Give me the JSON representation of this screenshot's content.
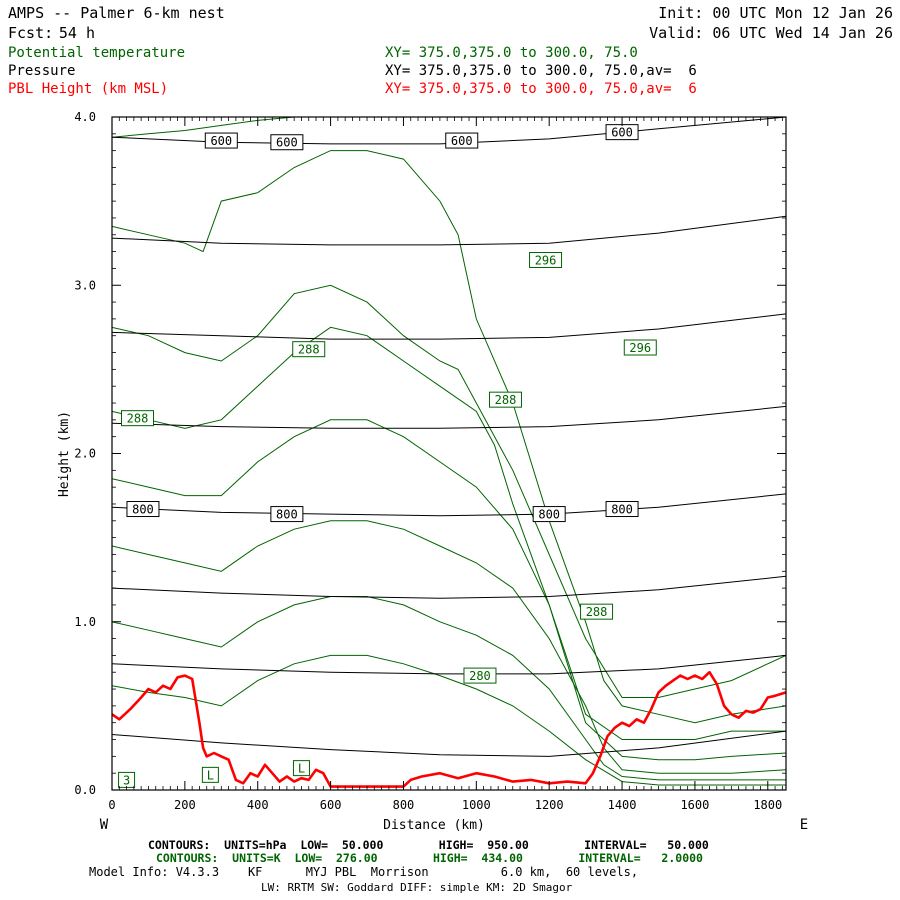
{
  "header": {
    "title_left": "AMPS -- Palmer 6-km nest",
    "fcst_label": "Fcst:",
    "fcst_value": "54 h",
    "init": "Init: 00 UTC Mon 12 Jan 26",
    "valid": "Valid: 06 UTC Wed 14 Jan 26",
    "field_theta": "Potential temperature",
    "field_pressure": "Pressure",
    "field_pbl": "PBL Height (km MSL)",
    "xy_theta": "XY= 375.0,375.0 to 300.0, 75.0",
    "xy_pressure": "XY= 375.0,375.0 to 300.0, 75.0,av=  6",
    "xy_pbl": "XY= 375.0,375.0 to 300.0, 75.0,av=  6"
  },
  "colors": {
    "theta": "#006400",
    "pressure": "#000000",
    "pbl": "#ff0000",
    "background": "#ffffff"
  },
  "footer": {
    "contours_hpa": "CONTOURS:  UNITS=hPa  LOW=  50.000        HIGH=  950.00        INTERVAL=   50.000",
    "contours_k": "CONTOURS:  UNITS=K  LOW=  276.00        HIGH=  434.00        INTERVAL=   2.0000",
    "model_info": "Model Info: V4.3.3    KF      MYJ PBL  Morrison          6.0 km,  60 levels,",
    "model_info2": "LW: RRTM SW: Goddard DIFF: simple KM: 2D Smagor"
  },
  "chart_data": {
    "type": "line",
    "title": "AMPS -- Palmer 6-km nest",
    "xlabel": "Distance (km)",
    "ylabel": "Height (km)",
    "xlim": [
      0,
      1850
    ],
    "ylim": [
      0,
      4.0
    ],
    "x_ticks": [
      0,
      200,
      400,
      600,
      800,
      1000,
      1200,
      1400,
      1600,
      1800
    ],
    "x_tick_labels": [
      "0",
      "200",
      "400",
      "600",
      "800",
      "1000",
      "1200",
      "1400",
      "1600",
      "1800"
    ],
    "y_ticks": [
      0,
      1,
      2,
      3,
      4
    ],
    "y_tick_labels": [
      "0.0",
      "1.0",
      "2.0",
      "3.0",
      "4.0"
    ],
    "x_end_labels": {
      "left": "W",
      "right": "E"
    },
    "pressure_contours": [
      {
        "x": [
          0,
          300,
          600,
          900,
          1200,
          1500,
          1850
        ],
        "y": [
          0.33,
          0.28,
          0.24,
          0.21,
          0.2,
          0.25,
          0.35
        ]
      },
      {
        "x": [
          0,
          300,
          600,
          900,
          1200,
          1500,
          1850
        ],
        "y": [
          0.75,
          0.72,
          0.7,
          0.69,
          0.69,
          0.72,
          0.8
        ]
      },
      {
        "x": [
          0,
          300,
          600,
          900,
          1200,
          1500,
          1850
        ],
        "y": [
          1.2,
          1.17,
          1.15,
          1.14,
          1.15,
          1.19,
          1.27
        ]
      },
      {
        "x": [
          0,
          300,
          600,
          900,
          1200,
          1500,
          1850
        ],
        "y": [
          1.68,
          1.65,
          1.64,
          1.63,
          1.64,
          1.68,
          1.76
        ]
      },
      {
        "x": [
          0,
          300,
          600,
          900,
          1200,
          1500,
          1850
        ],
        "y": [
          2.18,
          2.16,
          2.15,
          2.15,
          2.16,
          2.2,
          2.28
        ]
      },
      {
        "x": [
          0,
          300,
          600,
          900,
          1200,
          1500,
          1850
        ],
        "y": [
          2.72,
          2.7,
          2.68,
          2.68,
          2.69,
          2.74,
          2.83
        ]
      },
      {
        "x": [
          0,
          300,
          600,
          900,
          1200,
          1500,
          1850
        ],
        "y": [
          3.28,
          3.25,
          3.24,
          3.24,
          3.25,
          3.31,
          3.41
        ]
      },
      {
        "x": [
          0,
          300,
          600,
          900,
          1200,
          1500,
          1850
        ],
        "y": [
          3.88,
          3.85,
          3.84,
          3.84,
          3.87,
          3.93,
          4.02
        ]
      }
    ],
    "pressure_labels": [
      {
        "text": "600",
        "x": 300,
        "y": 3.86
      },
      {
        "text": "600",
        "x": 480,
        "y": 3.85
      },
      {
        "text": "600",
        "x": 960,
        "y": 3.86
      },
      {
        "text": "600",
        "x": 1400,
        "y": 3.91
      },
      {
        "text": "800",
        "x": 85,
        "y": 1.67
      },
      {
        "text": "800",
        "x": 480,
        "y": 1.64
      },
      {
        "text": "800",
        "x": 1200,
        "y": 1.64
      },
      {
        "text": "800",
        "x": 1400,
        "y": 1.67
      }
    ],
    "theta_contours": [
      {
        "x": [
          0,
          100,
          200,
          300,
          400,
          500,
          600,
          700,
          800,
          900,
          1000,
          1100,
          1200,
          1300,
          1350,
          1400,
          1500,
          1600,
          1700,
          1850
        ],
        "y": [
          3.88,
          3.9,
          3.92,
          3.95,
          3.98,
          4.0,
          4.0,
          4.0,
          4.0,
          4.0,
          4.0,
          4.0,
          4.0,
          4.0,
          4.0,
          4.0,
          4.0,
          4.0,
          4.0,
          4.0
        ]
      },
      {
        "x": [
          0,
          100,
          200,
          250,
          300,
          400,
          500,
          600,
          700,
          800,
          900,
          950,
          1000,
          1100,
          1200,
          1300,
          1350,
          1400,
          1500,
          1600,
          1700,
          1850
        ],
        "y": [
          3.35,
          3.3,
          3.25,
          3.2,
          3.5,
          3.55,
          3.7,
          3.8,
          3.8,
          3.75,
          3.5,
          3.3,
          2.8,
          2.3,
          1.6,
          1.0,
          0.65,
          0.5,
          0.45,
          0.4,
          0.45,
          0.5
        ]
      },
      {
        "x": [
          0,
          100,
          200,
          300,
          400,
          500,
          600,
          700,
          800,
          900,
          950,
          1000,
          1100,
          1200,
          1300,
          1400,
          1500,
          1600,
          1700,
          1850
        ],
        "y": [
          2.75,
          2.7,
          2.6,
          2.55,
          2.7,
          2.95,
          3.0,
          2.9,
          2.7,
          2.55,
          2.5,
          2.3,
          1.9,
          1.4,
          0.9,
          0.55,
          0.55,
          0.6,
          0.65,
          0.8
        ]
      },
      {
        "x": [
          0,
          100,
          200,
          300,
          400,
          500,
          600,
          700,
          800,
          900,
          1000,
          1050,
          1100,
          1200,
          1300,
          1400,
          1500,
          1600,
          1700,
          1850
        ],
        "y": [
          2.25,
          2.2,
          2.15,
          2.2,
          2.4,
          2.6,
          2.75,
          2.7,
          2.55,
          2.4,
          2.25,
          2.05,
          1.7,
          1.1,
          0.45,
          0.3,
          0.3,
          0.3,
          0.35,
          0.35
        ]
      },
      {
        "x": [
          0,
          100,
          200,
          300,
          400,
          500,
          600,
          700,
          800,
          900,
          1000,
          1100,
          1200,
          1250,
          1300,
          1400,
          1500,
          1600,
          1700,
          1850
        ],
        "y": [
          1.85,
          1.8,
          1.75,
          1.75,
          1.95,
          2.1,
          2.2,
          2.2,
          2.1,
          1.95,
          1.8,
          1.55,
          1.1,
          0.75,
          0.4,
          0.2,
          0.18,
          0.18,
          0.2,
          0.22
        ]
      },
      {
        "x": [
          0,
          100,
          200,
          300,
          400,
          500,
          600,
          700,
          800,
          900,
          1000,
          1100,
          1200,
          1300,
          1350,
          1400,
          1500,
          1600,
          1700,
          1850
        ],
        "y": [
          1.45,
          1.4,
          1.35,
          1.3,
          1.45,
          1.55,
          1.6,
          1.6,
          1.55,
          1.45,
          1.35,
          1.2,
          0.9,
          0.5,
          0.25,
          0.12,
          0.1,
          0.1,
          0.1,
          0.12
        ]
      },
      {
        "x": [
          0,
          100,
          200,
          300,
          400,
          500,
          600,
          700,
          800,
          900,
          1000,
          1100,
          1200,
          1300,
          1350,
          1400,
          1500,
          1600,
          1700,
          1850
        ],
        "y": [
          1.0,
          0.95,
          0.9,
          0.85,
          1.0,
          1.1,
          1.15,
          1.15,
          1.1,
          1.0,
          0.92,
          0.8,
          0.6,
          0.3,
          0.15,
          0.08,
          0.06,
          0.06,
          0.06,
          0.06
        ]
      },
      {
        "x": [
          0,
          100,
          200,
          300,
          400,
          500,
          600,
          700,
          800,
          900,
          1000,
          1100,
          1200,
          1300,
          1400,
          1500,
          1600,
          1700,
          1850
        ],
        "y": [
          0.62,
          0.58,
          0.55,
          0.5,
          0.65,
          0.75,
          0.8,
          0.8,
          0.75,
          0.68,
          0.6,
          0.5,
          0.35,
          0.18,
          0.05,
          0.03,
          0.03,
          0.03,
          0.03
        ]
      }
    ],
    "theta_labels": [
      {
        "text": "296",
        "x": 1190,
        "y": 3.15
      },
      {
        "text": "296",
        "x": 1450,
        "y": 2.63
      },
      {
        "text": "288",
        "x": 540,
        "y": 2.62
      },
      {
        "text": "288",
        "x": 70,
        "y": 2.21
      },
      {
        "text": "288",
        "x": 1080,
        "y": 2.32
      },
      {
        "text": "288",
        "x": 1330,
        "y": 1.06
      },
      {
        "text": "280",
        "x": 1010,
        "y": 0.68
      },
      {
        "text": "L",
        "x": 270,
        "y": 0.09
      },
      {
        "text": "L",
        "x": 520,
        "y": 0.13
      },
      {
        "text": "3",
        "x": 40,
        "y": 0.06
      }
    ],
    "pbl_height": {
      "x": [
        0,
        20,
        50,
        80,
        100,
        120,
        140,
        160,
        180,
        200,
        220,
        240,
        250,
        260,
        280,
        300,
        320,
        340,
        360,
        380,
        400,
        420,
        440,
        460,
        480,
        500,
        520,
        540,
        560,
        580,
        600,
        650,
        700,
        750,
        800,
        820,
        850,
        900,
        950,
        1000,
        1050,
        1100,
        1150,
        1200,
        1250,
        1300,
        1320,
        1340,
        1360,
        1380,
        1400,
        1420,
        1440,
        1460,
        1480,
        1500,
        1520,
        1540,
        1560,
        1580,
        1600,
        1620,
        1640,
        1660,
        1680,
        1700,
        1720,
        1740,
        1760,
        1780,
        1800,
        1820,
        1850
      ],
      "y": [
        0.45,
        0.42,
        0.48,
        0.55,
        0.6,
        0.58,
        0.62,
        0.6,
        0.67,
        0.68,
        0.66,
        0.4,
        0.25,
        0.2,
        0.22,
        0.2,
        0.18,
        0.06,
        0.04,
        0.1,
        0.08,
        0.15,
        0.1,
        0.05,
        0.08,
        0.05,
        0.07,
        0.06,
        0.12,
        0.1,
        0.02,
        0.02,
        0.02,
        0.02,
        0.02,
        0.06,
        0.08,
        0.1,
        0.07,
        0.1,
        0.08,
        0.05,
        0.06,
        0.04,
        0.05,
        0.04,
        0.1,
        0.2,
        0.32,
        0.37,
        0.4,
        0.38,
        0.42,
        0.4,
        0.48,
        0.58,
        0.62,
        0.65,
        0.68,
        0.66,
        0.68,
        0.66,
        0.7,
        0.63,
        0.5,
        0.45,
        0.43,
        0.47,
        0.46,
        0.48,
        0.55,
        0.56,
        0.58
      ]
    }
  }
}
